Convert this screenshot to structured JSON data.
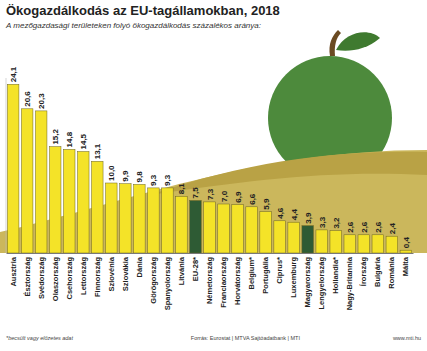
{
  "chart_data": {
    "type": "bar",
    "title": "Ökogazdálkodás az EU-tagállamokban, 2018",
    "subtitle": "A mezőgazdasági területeken folyó ökogazdálkodás százalékos aránya:",
    "categories": [
      "Ausztria",
      "Észtország",
      "Svédország",
      "Olaszország",
      "Csehország",
      "Lettország",
      "Finnország",
      "Szlovénia",
      "Szlovákia",
      "Dánia",
      "Görögország",
      "Spanyolország",
      "Litvánia",
      "EU-28*",
      "Németország",
      "Franciaország",
      "Horvátország",
      "Belgium*",
      "Portugália",
      "Ciprus*",
      "Luxemburg",
      "Magyarország",
      "Lengyelország",
      "Hollandia*",
      "Nagy-Britannia",
      "Írország",
      "Bulgária",
      "Románia",
      "Málta"
    ],
    "values": [
      24.1,
      20.6,
      20.3,
      15.2,
      14.8,
      14.5,
      13.1,
      10.0,
      9.9,
      9.8,
      9.3,
      9.3,
      8.1,
      7.5,
      7.3,
      7.0,
      6.9,
      6.6,
      5.9,
      4.6,
      4.4,
      3.9,
      3.3,
      3.2,
      2.6,
      2.6,
      2.6,
      2.4,
      0.4
    ],
    "value_labels": [
      "24,1",
      "20,6",
      "20,3",
      "15,2",
      "14,8",
      "14,5",
      "13,1",
      "10,0",
      "9,9",
      "9,8",
      "9,3",
      "9,3",
      "8,1",
      "7,5",
      "7,3",
      "7,0",
      "6,9",
      "6,6",
      "5,9",
      "4,6",
      "4,4",
      "3,9",
      "3,3",
      "3,2",
      "2,6",
      "2,6",
      "2,6",
      "2,4",
      "0,4"
    ],
    "colors": [
      "#f4e328",
      "#f4e328",
      "#f4e328",
      "#f4e328",
      "#f4e328",
      "#f4e328",
      "#f4e328",
      "#f4e328",
      "#f4e328",
      "#f4e328",
      "#f4e328",
      "#f4e328",
      "#f4e328",
      "#2e5b34",
      "#f4e328",
      "#f4e328",
      "#f4e328",
      "#f4e328",
      "#f4e328",
      "#f4e328",
      "#f4e328",
      "#2e5b34",
      "#f4e328",
      "#f4e328",
      "#f4e328",
      "#f4e328",
      "#f4e328",
      "#f4e328",
      "#f4e328"
    ],
    "ylim": [
      0,
      25
    ],
    "data_labels": true,
    "tick_labels": "x",
    "grid": false,
    "annotations": [
      "*becsült vagy előzetes adat",
      "Forrás: Eurostat | MTVA Sajtóadatbank | MTI",
      "www.mti.hu"
    ]
  }
}
